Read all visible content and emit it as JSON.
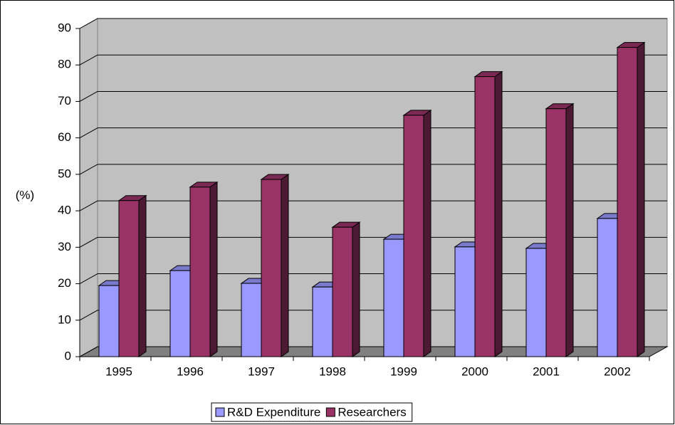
{
  "chart_data": {
    "type": "bar3d",
    "y_label": "(%)",
    "categories": [
      "1995",
      "1996",
      "1997",
      "1998",
      "1999",
      "2000",
      "2001",
      "2002"
    ],
    "series": [
      {
        "name": "R&D Expenditure",
        "color": "#9999ff",
        "values": [
          19.5,
          23.6,
          20.1,
          19.1,
          32.2,
          30.1,
          29.7,
          37.9
        ]
      },
      {
        "name": "Researchers",
        "color": "#993366",
        "values": [
          42.8,
          46.5,
          48.6,
          35.5,
          66.2,
          76.8,
          68,
          84.8
        ]
      }
    ],
    "ylim": [
      0,
      90
    ],
    "yticks": [
      0,
      10,
      20,
      30,
      40,
      50,
      60,
      70,
      80,
      90
    ],
    "grid": true,
    "legend": "bottom"
  }
}
